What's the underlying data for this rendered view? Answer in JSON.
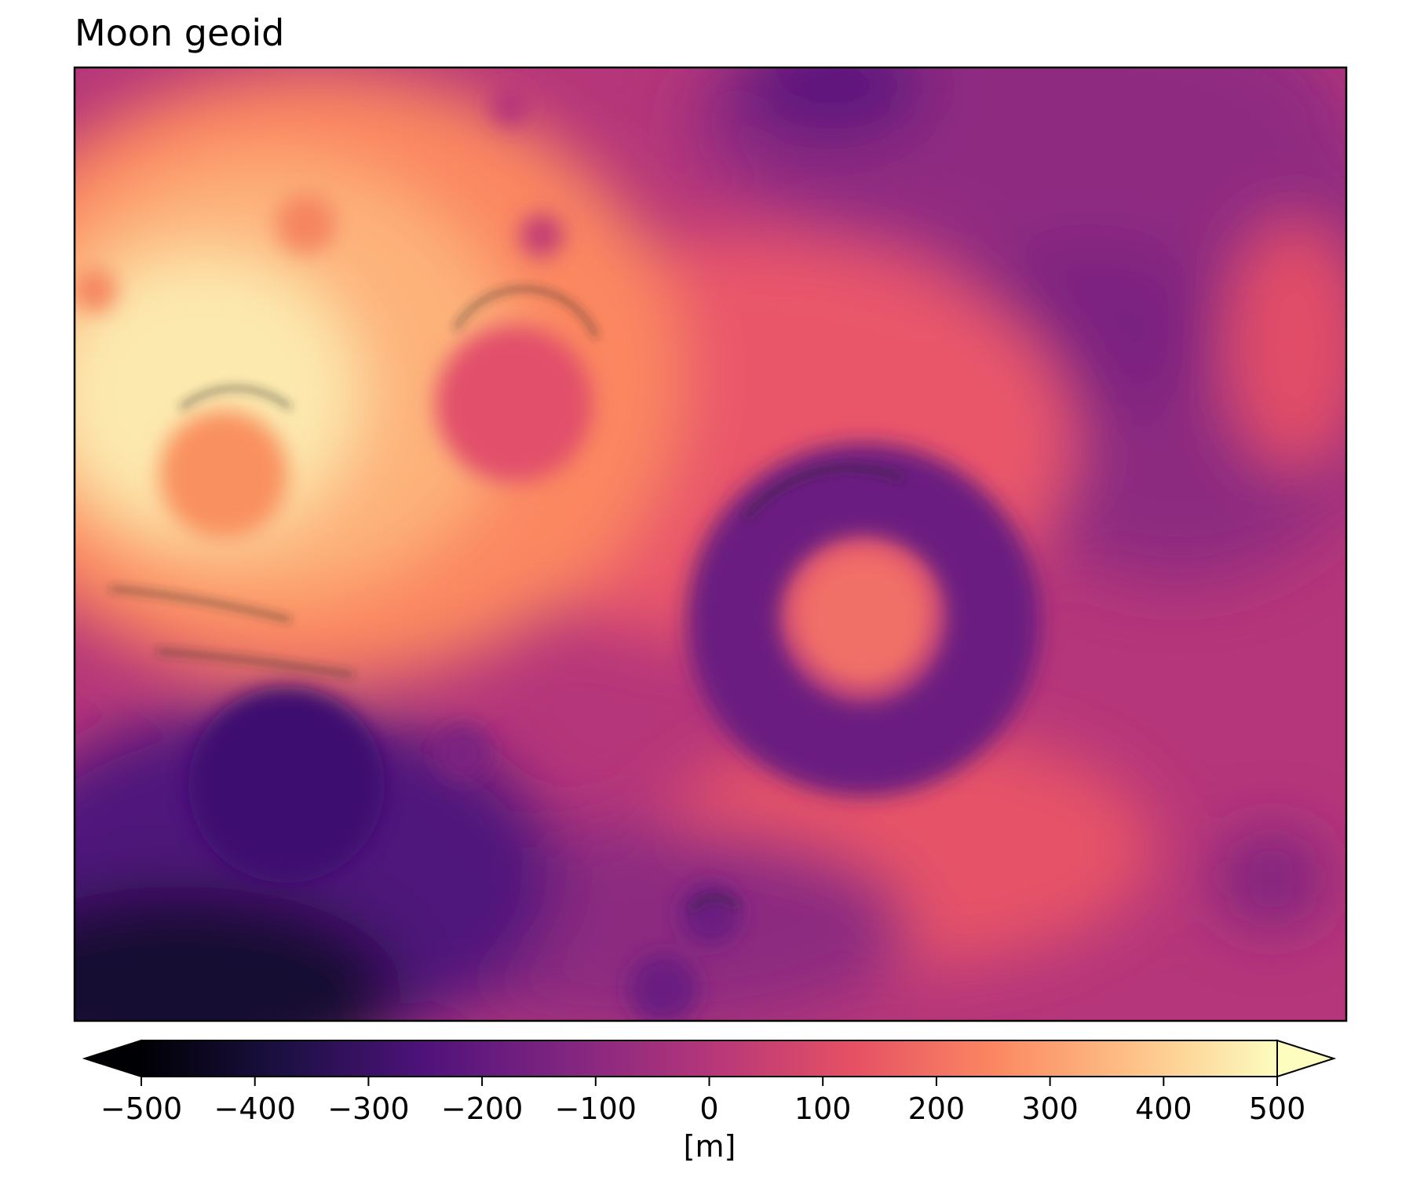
{
  "chart_data": {
    "type": "heatmap",
    "title": "Moon geoid",
    "xlabel": "",
    "ylabel": "",
    "colormap": "magma",
    "colormap_stops": [
      "#000004",
      "#1c1044",
      "#4f127b",
      "#812581",
      "#b5367a",
      "#e55064",
      "#fb8761",
      "#fec287",
      "#fcfdbf"
    ],
    "shading": "hillshade",
    "colorbar": {
      "label": "[m]",
      "range": [
        -500,
        500
      ],
      "extend": "both",
      "ticks": [
        -500,
        -400,
        -300,
        -200,
        -100,
        0,
        100,
        200,
        300,
        400,
        500
      ],
      "tick_labels": [
        "−500",
        "−400",
        "−300",
        "−200",
        "−100",
        "0",
        "100",
        "200",
        "300",
        "400",
        "500"
      ]
    },
    "features": [
      {
        "name": "upper-left highland",
        "value": 450
      },
      {
        "name": "crater inside highland",
        "value": 280
      },
      {
        "name": "upper-central crater",
        "value": 130
      },
      {
        "name": "central ring crater rim",
        "value": -260
      },
      {
        "name": "central ring crater floor",
        "value": 180
      },
      {
        "name": "lower-left basin",
        "value": -330
      },
      {
        "name": "bottom-left corner",
        "value": -480
      },
      {
        "name": "right region",
        "value": -120
      }
    ]
  }
}
